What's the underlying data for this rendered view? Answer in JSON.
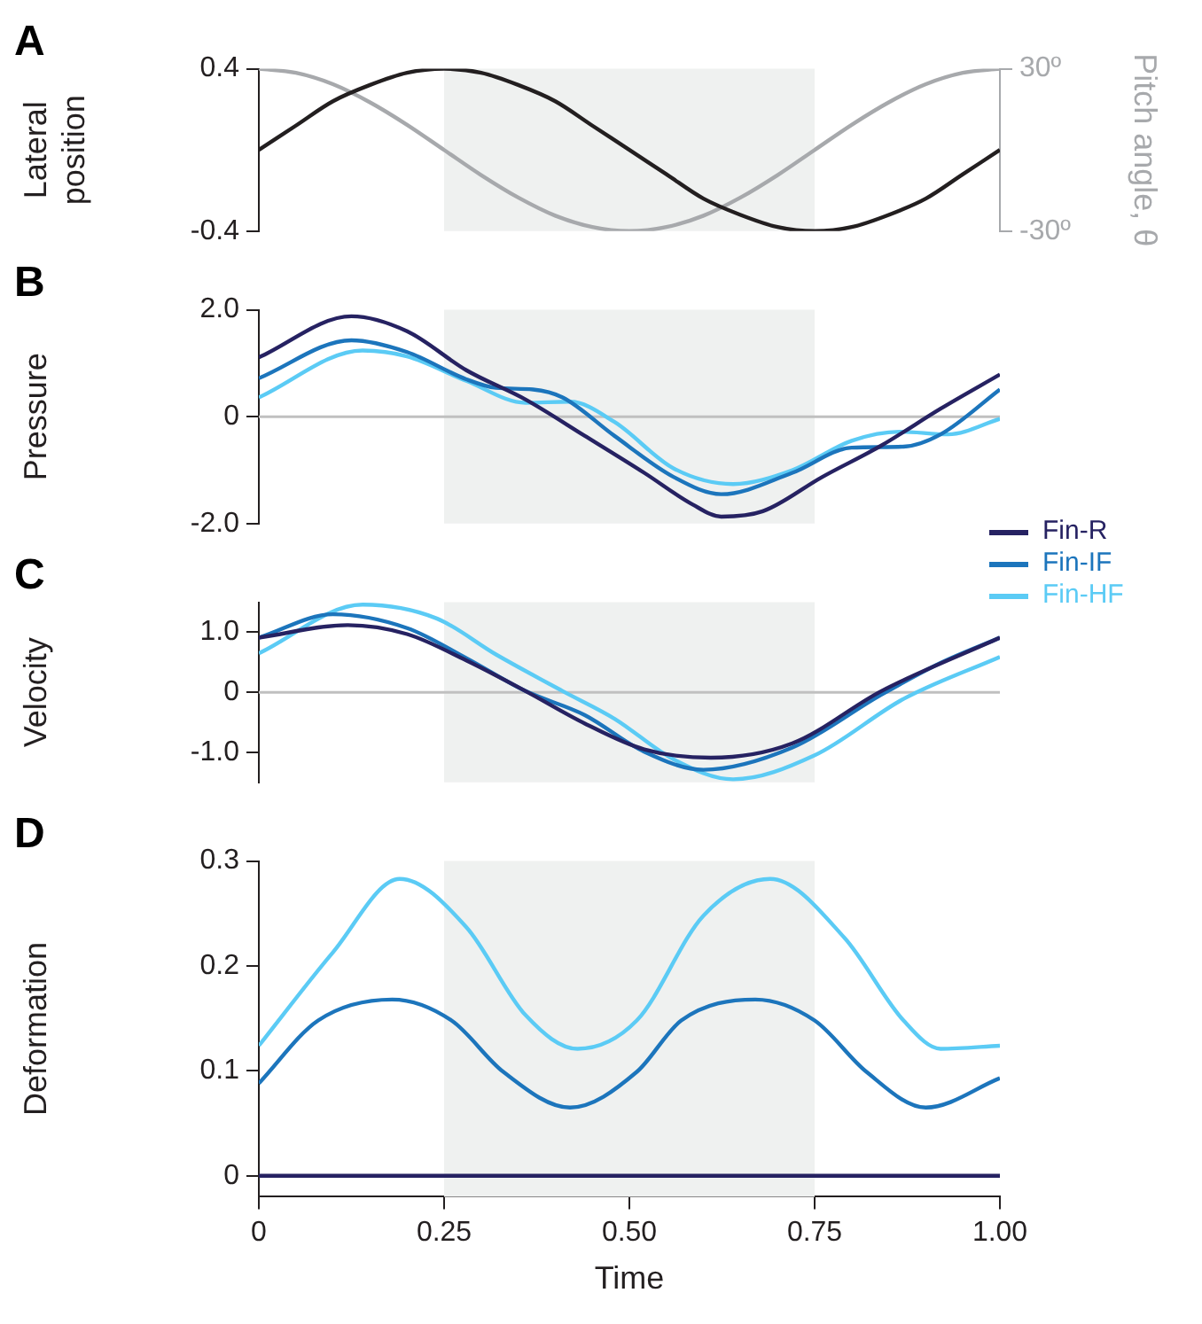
{
  "chart_data": [
    {
      "type": "line",
      "title": "A",
      "ylabel": "Lateral position",
      "y2label": "Pitch angle, θ",
      "xlim": [
        0,
        1
      ],
      "ylim": [
        -0.4,
        0.4
      ],
      "yticks": [
        0.4,
        -0.4
      ],
      "y2lim": [
        -30,
        30
      ],
      "y2ticks": [
        {
          "value": 30,
          "label": "30º"
        },
        {
          "value": -30,
          "label": "-30º"
        }
      ],
      "tick_labels": "y",
      "grid": false,
      "marker": "none",
      "line_style": "solid",
      "bands": [
        {
          "axis": "x",
          "from": 0.25,
          "to": 0.75,
          "color": "#eff1f0"
        }
      ],
      "series": [
        {
          "color": "#231f20",
          "x": [
            0,
            0.05,
            0.1,
            0.15,
            0.2,
            0.25,
            0.3,
            0.35,
            0.4,
            0.45,
            0.5,
            0.55,
            0.6,
            0.65,
            0.7,
            0.75,
            0.8,
            0.85,
            0.9,
            0.95,
            1
          ],
          "values": [
            0,
            0.12,
            0.24,
            0.32,
            0.38,
            0.4,
            0.38,
            0.32,
            0.24,
            0.12,
            0,
            -0.12,
            -0.24,
            -0.32,
            -0.38,
            -0.4,
            -0.38,
            -0.32,
            -0.24,
            -0.12,
            0
          ]
        },
        {
          "color": "#a7a9ac",
          "axis": "y2",
          "x": [
            0,
            0.05,
            0.1,
            0.15,
            0.2,
            0.25,
            0.3,
            0.35,
            0.4,
            0.45,
            0.5,
            0.55,
            0.6,
            0.65,
            0.7,
            0.75,
            0.8,
            0.85,
            0.9,
            0.95,
            1
          ],
          "values": [
            30,
            28.5,
            24.3,
            17.6,
            9.3,
            0,
            -9.3,
            -17.6,
            -24.3,
            -28.5,
            -30,
            -28.5,
            -24.3,
            -17.6,
            -9.3,
            0,
            9.3,
            17.6,
            24.3,
            28.5,
            30
          ]
        }
      ]
    },
    {
      "type": "line",
      "title": "B",
      "ylabel": "Pressure",
      "xlim": [
        0,
        1
      ],
      "ylim": [
        -2,
        2
      ],
      "yticks": [
        {
          "value": 2,
          "label": "2.0"
        },
        0,
        {
          "value": -2,
          "label": "-2.0"
        }
      ],
      "tick_labels": "y",
      "grid": false,
      "marker": "none",
      "line_style": "solid",
      "legend": "right",
      "bands": [
        {
          "axis": "x",
          "from": 0.25,
          "to": 0.75,
          "color": "#eff1f0"
        }
      ],
      "ref_lines": [
        {
          "axis": "y",
          "value": 0,
          "color": "#c0c0c0"
        }
      ],
      "series": [
        {
          "name": "Fin-R",
          "color": "#262262",
          "x": [
            0,
            0.125,
            0.2,
            0.28,
            0.36,
            0.44,
            0.52,
            0.585,
            0.624,
            0.68,
            0.76,
            0.84,
            0.92,
            1
          ],
          "values": [
            1.11,
            1.88,
            1.6,
            0.87,
            0.32,
            -0.36,
            -1.05,
            -1.64,
            -1.87,
            -1.77,
            -1.13,
            -0.54,
            0.15,
            0.79
          ]
        },
        {
          "name": "Fin-IF",
          "color": "#1c75bc",
          "x": [
            0,
            0.125,
            0.2,
            0.28,
            0.32,
            0.37,
            0.41,
            0.48,
            0.56,
            0.624,
            0.72,
            0.8,
            0.87,
            0.92,
            1
          ],
          "values": [
            0.72,
            1.43,
            1.21,
            0.7,
            0.54,
            0.51,
            0.36,
            -0.36,
            -1.13,
            -1.45,
            -1.05,
            -0.58,
            -0.56,
            -0.33,
            0.51
          ]
        },
        {
          "name": "Fin-HF",
          "color": "#5bcbf5",
          "x": [
            0,
            0.14,
            0.2,
            0.28,
            0.36,
            0.42,
            0.48,
            0.56,
            0.64,
            0.72,
            0.8,
            0.865,
            0.93,
            1
          ],
          "values": [
            0.36,
            1.24,
            1.13,
            0.67,
            0.26,
            0.28,
            -0.1,
            -0.97,
            -1.26,
            -1.0,
            -0.45,
            -0.28,
            -0.33,
            -0.04
          ]
        }
      ]
    },
    {
      "type": "line",
      "title": "C",
      "ylabel": "Velocity",
      "xlim": [
        0,
        1
      ],
      "ylim": [
        -1.5,
        1.5
      ],
      "yticks": [
        {
          "value": 1,
          "label": "1.0"
        },
        0,
        {
          "value": -1,
          "label": "-1.0"
        }
      ],
      "tick_labels": "y",
      "grid": false,
      "marker": "none",
      "line_style": "solid",
      "bands": [
        {
          "axis": "x",
          "from": 0.25,
          "to": 0.75,
          "color": "#eff1f0"
        }
      ],
      "ref_lines": [
        {
          "axis": "y",
          "value": 0,
          "color": "#c0c0c0"
        }
      ],
      "series": [
        {
          "color": "#262262",
          "x": [
            0,
            0.12,
            0.2,
            0.28,
            0.36,
            0.44,
            0.52,
            0.61,
            0.72,
            0.84,
            1
          ],
          "values": [
            0.91,
            1.12,
            0.97,
            0.53,
            0.02,
            -0.52,
            -0.95,
            -1.09,
            -0.85,
            0.02,
            0.91
          ]
        },
        {
          "color": "#1c75bc",
          "x": [
            0,
            0.1,
            0.2,
            0.28,
            0.36,
            0.44,
            0.52,
            0.6,
            0.72,
            0.84,
            0.92,
            1
          ],
          "values": [
            0.91,
            1.3,
            1.07,
            0.57,
            0.02,
            -0.38,
            -0.99,
            -1.29,
            -0.92,
            -0.04,
            0.49,
            0.91
          ]
        },
        {
          "color": "#5bcbf5",
          "x": [
            0,
            0.14,
            0.24,
            0.32,
            0.41,
            0.48,
            0.56,
            0.64,
            0.75,
            0.87,
            1
          ],
          "values": [
            0.65,
            1.46,
            1.23,
            0.63,
            0.02,
            -0.44,
            -1.12,
            -1.45,
            -1.05,
            -0.11,
            0.59
          ]
        }
      ]
    },
    {
      "type": "line",
      "title": "D",
      "ylabel": "Deformation",
      "xlabel": "Time",
      "xlim": [
        0,
        1
      ],
      "ylim": [
        -0.02,
        0.3
      ],
      "yticks": [
        0,
        0.1,
        0.2,
        0.3
      ],
      "xticks": [
        0,
        {
          "value": 0.25,
          "label": "0.25"
        },
        {
          "value": 0.5,
          "label": "0.50"
        },
        {
          "value": 0.75,
          "label": "0.75"
        },
        {
          "value": 1,
          "label": "1.00"
        }
      ],
      "grid": false,
      "marker": "none",
      "line_style": "solid",
      "bands": [
        {
          "axis": "x",
          "from": 0.25,
          "to": 0.75,
          "color": "#eff1f0"
        }
      ],
      "series": [
        {
          "color": "#262262",
          "x": [
            0,
            1
          ],
          "values": [
            0,
            0
          ]
        },
        {
          "color": "#1c75bc",
          "x": [
            0,
            0.08,
            0.18,
            0.26,
            0.33,
            0.42,
            0.51,
            0.57,
            0.67,
            0.75,
            0.82,
            0.9,
            1
          ],
          "values": [
            0.088,
            0.148,
            0.168,
            0.148,
            0.099,
            0.065,
            0.099,
            0.148,
            0.168,
            0.148,
            0.099,
            0.065,
            0.093
          ]
        },
        {
          "color": "#5bcbf5",
          "x": [
            0,
            0.1,
            0.19,
            0.28,
            0.36,
            0.43,
            0.51,
            0.6,
            0.69,
            0.79,
            0.87,
            0.92,
            1
          ],
          "values": [
            0.124,
            0.213,
            0.283,
            0.237,
            0.153,
            0.121,
            0.148,
            0.248,
            0.283,
            0.227,
            0.148,
            0.121,
            0.124
          ]
        }
      ]
    }
  ]
}
